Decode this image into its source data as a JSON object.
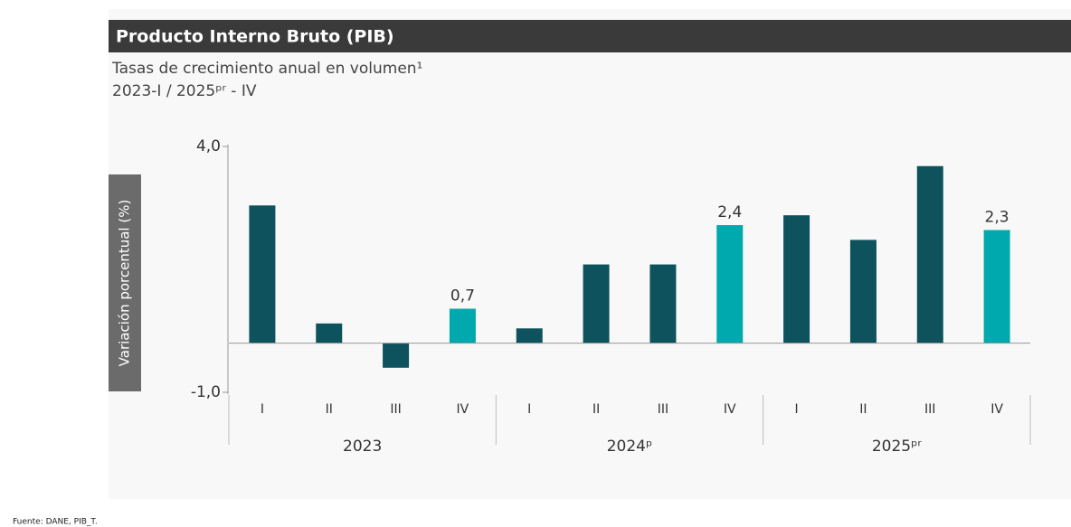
{
  "chart_data": {
    "type": "bar",
    "title": "Producto Interno Bruto (PIB)",
    "subtitle": [
      "Tasas de crecimiento anual en volumen¹",
      "2023-I / 2025ᵖʳ - IV"
    ],
    "y_label": "Variación porcentual (%)",
    "categories": [
      "I",
      "II",
      "III",
      "IV",
      "I",
      "II",
      "III",
      "IV",
      "I",
      "II",
      "III",
      "IV"
    ],
    "groups": [
      "2023",
      "2024ᵖ",
      "2025ᵖʳ"
    ],
    "values": [
      2.8,
      0.4,
      -0.5,
      0.7,
      0.3,
      1.6,
      1.6,
      2.4,
      2.6,
      2.1,
      3.6,
      2.3
    ],
    "value_labels": [
      null,
      null,
      null,
      "0,7",
      null,
      null,
      null,
      "2,4",
      null,
      null,
      null,
      "2,3"
    ],
    "colors": [
      "#0d525c",
      "#0d525c",
      "#0d525c",
      "#00a9ad",
      "#0d525c",
      "#0d525c",
      "#0d525c",
      "#00a9ad",
      "#0d525c",
      "#0d525c",
      "#0d525c",
      "#00a9ad"
    ],
    "ylim": [
      -1,
      4
    ],
    "yticks": [
      {
        "value": 4,
        "label": "4,0"
      },
      {
        "value": -1,
        "label": "-1,0"
      }
    ],
    "source": "Fuente: DANE, PIB_T."
  }
}
